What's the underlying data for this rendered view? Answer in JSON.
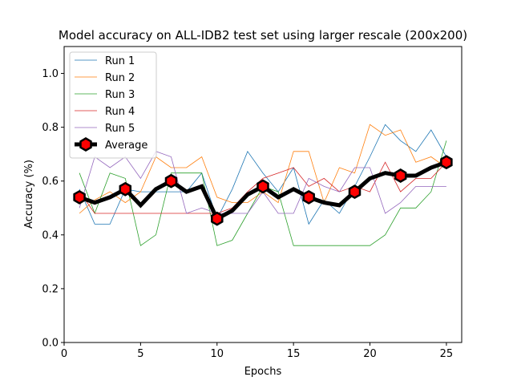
{
  "chart_data": {
    "type": "line",
    "title": "Model accuracy on ALL-IDB2 test set using larger rescale (200x200)",
    "xlabel": "Epochs",
    "ylabel": "Accuracy (%)",
    "xlim": [
      0,
      26
    ],
    "ylim": [
      0,
      1.1
    ],
    "xticks": [
      0,
      5,
      10,
      15,
      20,
      25
    ],
    "yticks": [
      0.0,
      0.2,
      0.4,
      0.6,
      0.8,
      1.0
    ],
    "xtick_labels": [
      "0",
      "5",
      "10",
      "15",
      "20",
      "25"
    ],
    "ytick_labels": [
      "0.0",
      "0.2",
      "0.4",
      "0.6",
      "0.8",
      "1.0"
    ],
    "grid": false,
    "legend_position": "top-left",
    "x": [
      1,
      2,
      3,
      4,
      5,
      6,
      7,
      8,
      9,
      10,
      11,
      12,
      13,
      14,
      15,
      16,
      17,
      18,
      19,
      20,
      21,
      22,
      23,
      24,
      25
    ],
    "series": [
      {
        "name": "Run 1",
        "color": "#1f77b4",
        "values": [
          0.57,
          0.44,
          0.44,
          0.57,
          0.56,
          0.56,
          0.56,
          0.56,
          0.63,
          0.46,
          0.57,
          0.71,
          0.63,
          0.56,
          0.65,
          0.44,
          0.53,
          0.48,
          0.58,
          0.69,
          0.81,
          0.75,
          0.71,
          0.79,
          0.69
        ]
      },
      {
        "name": "Run 2",
        "color": "#ff7f0e",
        "values": [
          0.48,
          0.53,
          0.56,
          0.52,
          0.56,
          0.69,
          0.65,
          0.65,
          0.69,
          0.54,
          0.52,
          0.52,
          0.56,
          0.52,
          0.71,
          0.71,
          0.52,
          0.65,
          0.63,
          0.81,
          0.77,
          0.79,
          0.67,
          0.69,
          0.65
        ]
      },
      {
        "name": "Run 3",
        "color": "#2ca02c",
        "values": [
          0.63,
          0.48,
          0.63,
          0.61,
          0.36,
          0.4,
          0.63,
          0.63,
          0.63,
          0.36,
          0.38,
          0.48,
          0.58,
          0.56,
          0.36,
          0.36,
          0.36,
          0.36,
          0.36,
          0.36,
          0.4,
          0.5,
          0.5,
          0.56,
          0.75
        ]
      },
      {
        "name": "Run 4",
        "color": "#d62728",
        "values": [
          0.56,
          0.48,
          0.48,
          0.48,
          0.48,
          0.48,
          0.48,
          0.48,
          0.48,
          0.48,
          0.5,
          0.56,
          0.61,
          0.63,
          0.65,
          0.58,
          0.61,
          0.56,
          0.58,
          0.56,
          0.67,
          0.56,
          0.61,
          0.61,
          0.67
        ]
      },
      {
        "name": "Run 5",
        "color": "#9467bd",
        "values": [
          0.5,
          0.69,
          0.65,
          0.69,
          0.61,
          0.71,
          0.69,
          0.48,
          0.5,
          0.48,
          0.48,
          0.48,
          0.56,
          0.48,
          0.48,
          0.61,
          0.58,
          0.56,
          0.65,
          0.65,
          0.48,
          0.52,
          0.58,
          0.58,
          0.58
        ]
      },
      {
        "name": "Average",
        "color": "#000000",
        "marker_fill": "#ff0000",
        "values": [
          0.54,
          0.52,
          0.54,
          0.57,
          0.51,
          0.57,
          0.6,
          0.56,
          0.58,
          0.46,
          0.49,
          0.55,
          0.58,
          0.54,
          0.57,
          0.54,
          0.52,
          0.51,
          0.56,
          0.61,
          0.63,
          0.62,
          0.62,
          0.65,
          0.67
        ],
        "marker_every": 3
      }
    ]
  }
}
